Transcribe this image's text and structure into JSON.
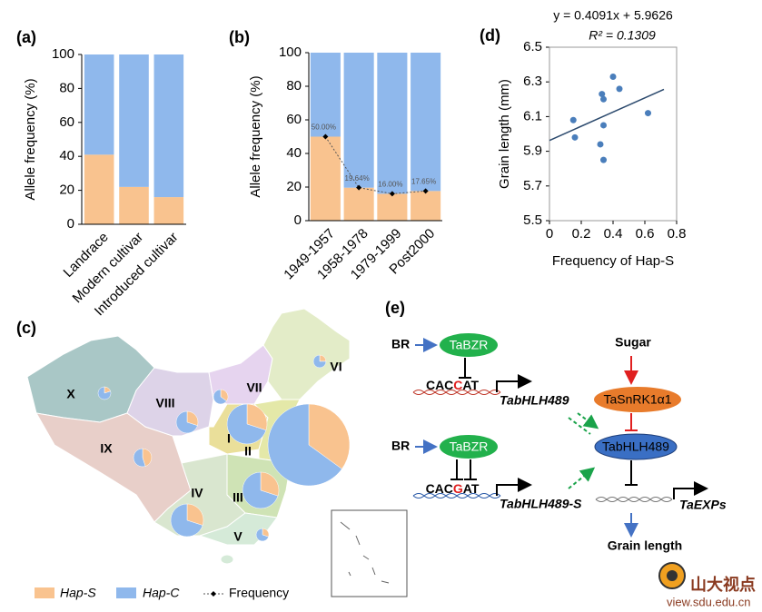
{
  "chart_data": [
    {
      "type": "bar",
      "stacked": true,
      "panel_label": "(a)",
      "ylabel": "Allele frequency (%)",
      "categories": [
        "Landrace",
        "Modern cultivar",
        "Introduced cultivar"
      ],
      "series": [
        {
          "name": "Hap-S",
          "color": "#f9c38f",
          "values": [
            41,
            22,
            16
          ]
        },
        {
          "name": "Hap-C",
          "color": "#8fb8ec",
          "values": [
            59,
            78,
            84
          ]
        }
      ],
      "ylim": [
        0,
        100
      ],
      "yticks": [
        0,
        20,
        40,
        60,
        80,
        100
      ]
    },
    {
      "type": "bar",
      "stacked": true,
      "panel_label": "(b)",
      "ylabel": "Allele frequency (%)",
      "categories": [
        "1949-1957",
        "1958-1978",
        "1979-1999",
        "Post2000"
      ],
      "series": [
        {
          "name": "Hap-S",
          "color": "#f9c38f",
          "values": [
            50,
            19.64,
            16,
            17.65
          ]
        },
        {
          "name": "Hap-C",
          "color": "#8fb8ec",
          "values": [
            50,
            80.36,
            84,
            82.35
          ]
        },
        {
          "name": "Frequency",
          "type": "line",
          "color": "#555555",
          "values": [
            50,
            19.64,
            16,
            17.65
          ],
          "value_labels": [
            "50.00%",
            "19.64%",
            "16.00%",
            "17.65%"
          ]
        }
      ],
      "ylim": [
        0,
        100
      ],
      "yticks": [
        0,
        20,
        40,
        60,
        80,
        100
      ]
    },
    {
      "type": "scatter",
      "panel_label": "(d)",
      "equation": "y = 0.4091x  + 5.9626",
      "r2": "R² = 0.1309",
      "xlabel": "Frequency of Hap-S",
      "ylabel": "Grain length (mm)",
      "color": "#4a7ebb",
      "x": [
        0.15,
        0.16,
        0.32,
        0.33,
        0.34,
        0.34,
        0.34,
        0.4,
        0.44,
        0.62
      ],
      "y": [
        6.08,
        5.98,
        5.94,
        6.23,
        6.2,
        5.85,
        6.05,
        6.33,
        6.26,
        6.12
      ],
      "trendline": {
        "slope": 0.4091,
        "intercept": 5.9626
      },
      "xlim": [
        0,
        0.8
      ],
      "xticks": [
        0,
        0.2,
        0.4,
        0.6,
        0.8
      ],
      "ylim": [
        5.5,
        6.5
      ],
      "yticks": [
        5.5,
        5.7,
        5.9,
        6.1,
        6.3,
        6.5
      ]
    }
  ],
  "map": {
    "panel_label": "(c)",
    "regions": [
      {
        "label": "X",
        "values": [
          20,
          80
        ]
      },
      {
        "label": "VIII",
        "values": [
          30,
          70
        ]
      },
      {
        "label": "VII",
        "values": [
          35,
          65
        ]
      },
      {
        "label": "VI",
        "values": [
          25,
          75
        ]
      },
      {
        "label": "IX",
        "values": [
          45,
          55
        ]
      },
      {
        "label": "I",
        "values": [
          30,
          70
        ]
      },
      {
        "label": "II",
        "values": [
          35,
          65
        ]
      },
      {
        "label": "III",
        "values": [
          30,
          70
        ]
      },
      {
        "label": "IV",
        "values": [
          30,
          70
        ]
      },
      {
        "label": "V",
        "values": [
          30,
          70
        ]
      }
    ]
  },
  "diagram": {
    "panel_label": "(e)",
    "top": {
      "signal": "BR",
      "factor": "TaBZR",
      "motif": [
        "CAC",
        "C",
        "AT"
      ],
      "gene": "TabHLH489"
    },
    "bottom": {
      "signal": "BR",
      "factor": "TaBZR",
      "motif": [
        "CAC",
        "G",
        "AT"
      ],
      "gene": "TabHLH489-S"
    },
    "pathway": {
      "input": "Sugar",
      "kinase": "TaSnRK1α1",
      "tf": "TabHLH489",
      "target": "TaEXPs",
      "output": "Grain length"
    }
  },
  "watermark": {
    "name": "山大视点",
    "url": "view.sdu.edu.cn"
  }
}
